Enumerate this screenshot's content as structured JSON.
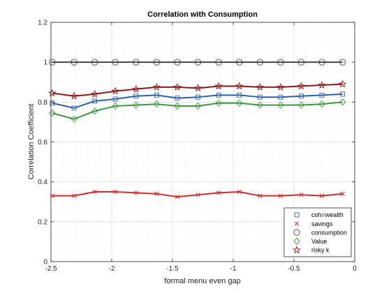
{
  "chart_data": {
    "type": "line",
    "title": "Correlation with Consumption",
    "xlabel": "formal menu even gap",
    "ylabel": "Correlation Coefficient",
    "xlim": [
      -2.5,
      0
    ],
    "ylim": [
      0,
      1.2
    ],
    "xticks": [
      "-2.5",
      "-2",
      "-1.5",
      "-1",
      "-0.5",
      "0"
    ],
    "xtick_values": [
      -2.5,
      -2,
      -1.5,
      -1,
      -0.5,
      0
    ],
    "yticks": [
      "0",
      "0.2",
      "0.4",
      "0.6",
      "0.8",
      "1",
      "1.2"
    ],
    "ytick_values": [
      0,
      0.2,
      0.4,
      0.6,
      0.8,
      1,
      1.2
    ],
    "grid": true,
    "minor_grid": true,
    "legend_position": "bottom-right",
    "x": [
      -2.49,
      -2.31,
      -2.14,
      -1.97,
      -1.8,
      -1.63,
      -1.46,
      -1.29,
      -1.12,
      -0.95,
      -0.78,
      -0.61,
      -0.44,
      -0.27,
      -0.1
    ],
    "series": [
      {
        "name": "coh=wealth",
        "color": "#2e5fa8",
        "marker": "square",
        "values": [
          0.795,
          0.77,
          0.805,
          0.815,
          0.83,
          0.835,
          0.82,
          0.825,
          0.835,
          0.835,
          0.825,
          0.825,
          0.83,
          0.835,
          0.84
        ]
      },
      {
        "name": "savings",
        "color": "#d52b2b",
        "marker": "x",
        "values": [
          0.33,
          0.33,
          0.35,
          0.35,
          0.345,
          0.34,
          0.325,
          0.335,
          0.345,
          0.35,
          0.33,
          0.33,
          0.335,
          0.33,
          0.34
        ]
      },
      {
        "name": "consumption",
        "color": "#454545",
        "marker": "circle",
        "values": [
          1,
          1,
          1,
          1,
          1,
          1,
          1,
          1,
          1,
          1,
          1,
          1,
          1,
          1,
          1
        ]
      },
      {
        "name": "Value",
        "color": "#3a9a3a",
        "marker": "diamond",
        "values": [
          0.745,
          0.715,
          0.755,
          0.78,
          0.785,
          0.79,
          0.78,
          0.78,
          0.795,
          0.795,
          0.785,
          0.785,
          0.785,
          0.79,
          0.8
        ]
      },
      {
        "name": "risky k",
        "color": "#8b1a1a",
        "marker": "star",
        "values": [
          0.845,
          0.83,
          0.84,
          0.855,
          0.865,
          0.875,
          0.875,
          0.87,
          0.88,
          0.88,
          0.875,
          0.875,
          0.88,
          0.885,
          0.89
        ]
      }
    ]
  }
}
